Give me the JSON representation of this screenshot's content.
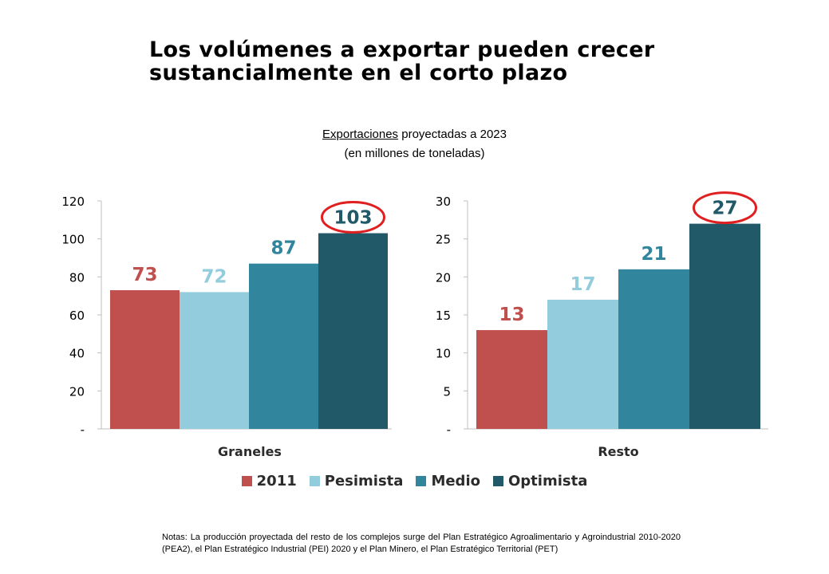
{
  "title": {
    "line1": "Los volúmenes a exportar pueden crecer",
    "line2": "sustancialmente en el corto plazo"
  },
  "subtitle": {
    "underlined": "Exportaciones",
    "rest": " proyectadas a 2023",
    "units": "(en millones de toneladas)"
  },
  "legend": [
    {
      "label": "2011",
      "color": "#c0504d"
    },
    {
      "label": "Pesimista",
      "color": "#93cddd"
    },
    {
      "label": "Medio",
      "color": "#31859c"
    },
    {
      "label": "Optimista",
      "color": "#215968"
    }
  ],
  "highlight_color": "#e02020",
  "notes": "Notas: La producción proyectada del resto de los complejos surge del Plan Estratégico Agroalimentario y Agroindustrial 2010-2020 (PEA2), el Plan Estratégico Industrial (PEI) 2020 y el Plan Minero, el Plan Estratégico Territorial (PET)",
  "chart_data": [
    {
      "type": "bar",
      "xlabel": "Graneles",
      "categories": [
        "2011",
        "Pesimista",
        "Medio",
        "Optimista"
      ],
      "values": [
        73,
        72,
        87,
        103
      ],
      "ylim": [
        0,
        120
      ],
      "yticks": [
        "-",
        "20",
        "40",
        "60",
        "80",
        "100",
        "120"
      ],
      "highlighted": "Optimista",
      "grid": false
    },
    {
      "type": "bar",
      "xlabel": "Resto",
      "categories": [
        "2011",
        "Pesimista",
        "Medio",
        "Optimista"
      ],
      "values": [
        13,
        17,
        21,
        27
      ],
      "ylim": [
        0,
        30
      ],
      "yticks": [
        "-",
        "5",
        "10",
        "15",
        "20",
        "25",
        "30"
      ],
      "highlighted": "Optimista",
      "grid": false
    }
  ]
}
